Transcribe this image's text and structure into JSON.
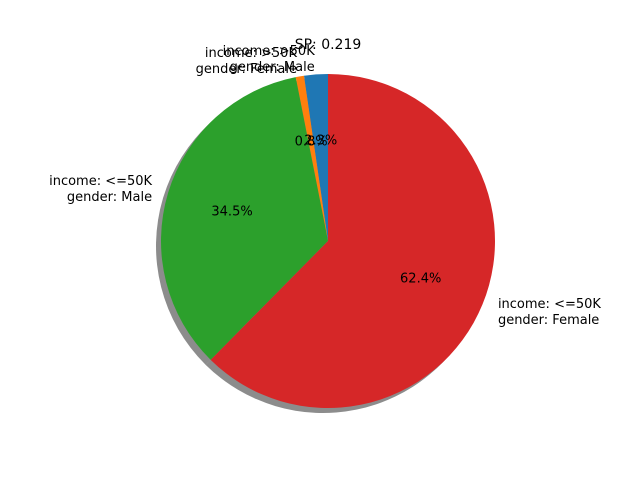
{
  "chart_data": {
    "type": "pie",
    "title": "SP: 0.219",
    "start_angle_deg": 90,
    "direction": "counterclockwise",
    "shadow": true,
    "slices": [
      {
        "label_lines": [
          "income: >50K",
          "gender: Male"
        ],
        "value": 2.3,
        "pct_label": "2.3%",
        "color": "#1f77b4"
      },
      {
        "label_lines": [
          "income: >50K",
          "gender: Female"
        ],
        "value": 0.8,
        "pct_label": "0.8%",
        "color": "#ff7f0e"
      },
      {
        "label_lines": [
          "income: <=50K",
          "gender: Male"
        ],
        "value": 34.5,
        "pct_label": "34.5%",
        "color": "#2ca02c"
      },
      {
        "label_lines": [
          "income: <=50K",
          "gender: Female"
        ],
        "value": 62.4,
        "pct_label": "62.4%",
        "color": "#d62728"
      }
    ]
  }
}
